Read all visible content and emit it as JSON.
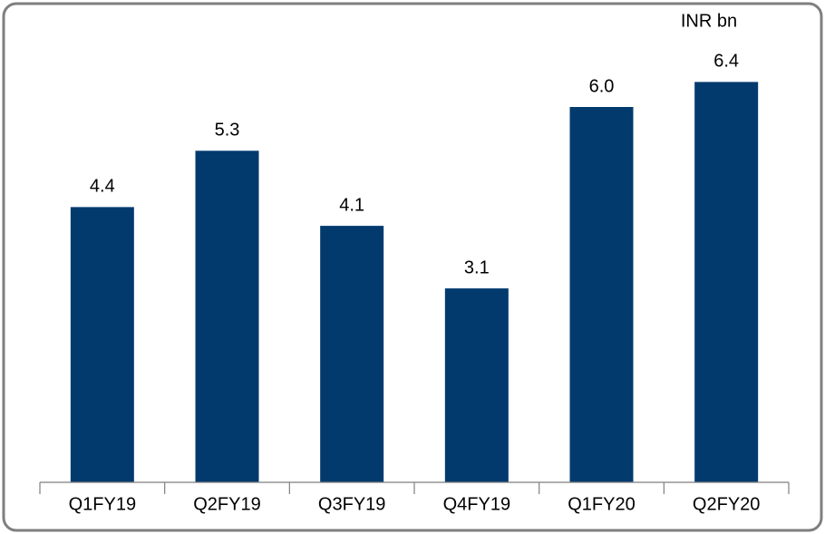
{
  "chart_data": {
    "type": "bar",
    "unit": "INR bn",
    "categories": [
      "Q1FY19",
      "Q2FY19",
      "Q3FY19",
      "Q4FY19",
      "Q1FY20",
      "Q2FY20"
    ],
    "values": [
      4.4,
      5.3,
      4.1,
      3.1,
      6.0,
      6.4
    ],
    "value_labels": [
      "4.4",
      "5.3",
      "4.1",
      "3.1",
      "6.0",
      "6.4"
    ],
    "color": "#023a6e",
    "ylim": [
      0,
      7
    ]
  }
}
